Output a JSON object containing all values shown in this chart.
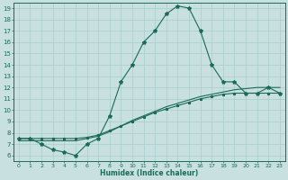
{
  "xlabel": "Humidex (Indice chaleur)",
  "bg_color": "#c8e0e0",
  "line_color": "#1a6b5a",
  "grid_color": "#a8cccc",
  "xlim": [
    -0.5,
    23.5
  ],
  "ylim": [
    5.5,
    19.5
  ],
  "xticks": [
    0,
    1,
    2,
    3,
    4,
    5,
    6,
    7,
    8,
    9,
    10,
    11,
    12,
    13,
    14,
    15,
    16,
    17,
    18,
    19,
    20,
    21,
    22,
    23
  ],
  "yticks": [
    6,
    7,
    8,
    9,
    10,
    11,
    12,
    13,
    14,
    15,
    16,
    17,
    18,
    19
  ],
  "curve_main_x": [
    0,
    1,
    2,
    3,
    4,
    5,
    6,
    7,
    8,
    9,
    10,
    11,
    12,
    13,
    14,
    15,
    16,
    17,
    18,
    19,
    20,
    21,
    22,
    23
  ],
  "curve_main_y": [
    7.5,
    7.5,
    7.0,
    6.5,
    6.3,
    6.0,
    7.0,
    7.5,
    9.5,
    12.5,
    14.0,
    16.0,
    17.0,
    18.5,
    19.2,
    19.0,
    17.0,
    14.0,
    12.5,
    12.5,
    11.5,
    11.5,
    12.0,
    11.5
  ],
  "curve_ref1_x": [
    0,
    1,
    2,
    3,
    4,
    5,
    6,
    7,
    8,
    9,
    10,
    11,
    12,
    13,
    14,
    15,
    16,
    17,
    18,
    19,
    20,
    21,
    22,
    23
  ],
  "curve_ref1_y": [
    7.5,
    7.5,
    7.5,
    7.5,
    7.5,
    7.5,
    7.6,
    7.8,
    8.2,
    8.6,
    9.0,
    9.4,
    9.8,
    10.1,
    10.4,
    10.7,
    11.0,
    11.2,
    11.4,
    11.5,
    11.5,
    11.5,
    11.5,
    11.5
  ],
  "curve_ref2_x": [
    0,
    1,
    2,
    3,
    4,
    5,
    6,
    7,
    8,
    9,
    10,
    11,
    12,
    13,
    14,
    15,
    16,
    17,
    18,
    19,
    20,
    21,
    22,
    23
  ],
  "curve_ref2_y": [
    7.3,
    7.3,
    7.3,
    7.3,
    7.3,
    7.3,
    7.5,
    7.7,
    8.1,
    8.6,
    9.1,
    9.5,
    9.9,
    10.3,
    10.6,
    10.9,
    11.2,
    11.4,
    11.6,
    11.8,
    11.9,
    12.0,
    12.0,
    12.0
  ]
}
